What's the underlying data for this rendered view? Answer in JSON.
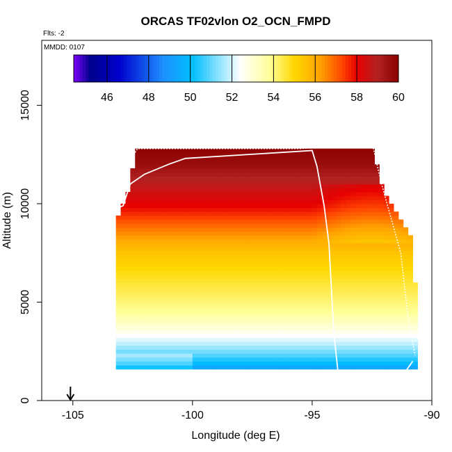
{
  "chart_data": {
    "type": "heatmap",
    "title": "ORCAS TF02vlon O2_OCN_FMPD",
    "subtitle_flights": "Flts: -2",
    "subtitle_date": "MMDD: 0107",
    "xlabel": "Longitude (deg E)",
    "ylabel": "Altitude (m)",
    "xlim": [
      -106.3,
      -90
    ],
    "ylim": [
      0,
      18300
    ],
    "x_ticks": [
      "-105",
      "-100",
      "-95",
      "-90"
    ],
    "x_tick_values": [
      -105,
      -100,
      -95,
      -90
    ],
    "y_ticks": [
      "0",
      "5000",
      "10000",
      "15000"
    ],
    "y_tick_values": [
      0,
      5000,
      10000,
      15000
    ],
    "colorbar": {
      "min": 44.4,
      "max": 60,
      "tick_labels": [
        "46",
        "48",
        "50",
        "52",
        "54",
        "56",
        "58",
        "60"
      ],
      "tick_values": [
        46,
        48,
        50,
        52,
        54,
        56,
        58,
        60
      ],
      "colors": [
        "#7f00ff",
        "#00008b",
        "#0000cd",
        "#1e90ff",
        "#00bfff",
        "#ffffff",
        "#ffff99",
        "#ffd700",
        "#ffa500",
        "#ff4500",
        "#e60000",
        "#b22222",
        "#8b0000"
      ],
      "color_stops": [
        44.4,
        45.2,
        46.6,
        48.7,
        50.1,
        52.4,
        53.8,
        55.0,
        56.2,
        57.3,
        58.0,
        59.0,
        60.0
      ]
    },
    "profile_levels": [
      {
        "alt": 0,
        "value": 45.8
      },
      {
        "alt": 800,
        "value": 46.5
      },
      {
        "alt": 1300,
        "value": 48.0
      },
      {
        "alt": 1800,
        "value": 49.8
      },
      {
        "alt": 2400,
        "value": 51.0
      },
      {
        "alt": 3000,
        "value": 52.0
      },
      {
        "alt": 3600,
        "value": 52.8
      },
      {
        "alt": 4500,
        "value": 53.8
      },
      {
        "alt": 6000,
        "value": 54.6
      },
      {
        "alt": 7500,
        "value": 55.4
      },
      {
        "alt": 8800,
        "value": 56.8
      },
      {
        "alt": 9800,
        "value": 57.9
      },
      {
        "alt": 11000,
        "value": 58.8
      },
      {
        "alt": 12000,
        "value": 59.6
      },
      {
        "alt": 13000,
        "value": 60.0
      }
    ],
    "data_extent": {
      "top_edge": [
        [
          -103.2,
          9000
        ],
        [
          -102.9,
          10000
        ],
        [
          -102.6,
          11000
        ],
        [
          -102.4,
          12700
        ],
        [
          -99.0,
          12900
        ],
        [
          -94.6,
          12900
        ],
        [
          -94.5,
          13100
        ],
        [
          -92.5,
          13100
        ],
        [
          -92.0,
          10500
        ],
        [
          -90.9,
          8500
        ],
        [
          -90.7,
          6000
        ],
        [
          -90.5,
          3400
        ]
      ],
      "bottom_edge": [
        [
          -105.3,
          1600
        ],
        [
          -103.5,
          1300
        ],
        [
          -101.3,
          900
        ],
        [
          -99.3,
          700
        ],
        [
          -93.5,
          400
        ],
        [
          -93.3,
          0
        ],
        [
          -91.6,
          0
        ],
        [
          -91.4,
          300
        ],
        [
          -90.8,
          600
        ],
        [
          -90.5,
          1500
        ]
      ],
      "left_edge": [
        [
          -105.3,
          1600
        ],
        [
          -105.3,
          3200
        ],
        [
          -104.7,
          4500
        ],
        [
          -104.5,
          6000
        ],
        [
          -104.0,
          7500
        ],
        [
          -103.7,
          8800
        ],
        [
          -103.3,
          9500
        ],
        [
          -103.0,
          10000
        ],
        [
          -102.7,
          11000
        ],
        [
          -102.4,
          12700
        ]
      ]
    },
    "flight_track_inbound": [
      [
        -105.1,
        1500
      ],
      [
        -104.8,
        4800
      ],
      [
        -104.3,
        5200
      ],
      [
        -104.0,
        7800
      ],
      [
        -103.6,
        8100
      ],
      [
        -103.3,
        9700
      ],
      [
        -102.9,
        9900
      ],
      [
        -102.6,
        11000
      ],
      [
        -102.0,
        11500
      ],
      [
        -101.0,
        12000
      ],
      [
        -100.3,
        12300
      ],
      [
        -95.0,
        12700
      ],
      [
        -94.8,
        11900
      ],
      [
        -94.5,
        9900
      ],
      [
        -94.3,
        8000
      ],
      [
        -94.2,
        5800
      ],
      [
        -94.1,
        3500
      ],
      [
        -93.9,
        1200
      ],
      [
        -93.7,
        300
      ],
      [
        -93.5,
        1300
      ],
      [
        -93.1,
        1300
      ],
      [
        -92.9,
        300
      ],
      [
        -92.5,
        300
      ],
      [
        -92.3,
        1300
      ],
      [
        -91.9,
        1300
      ],
      [
        -91.7,
        300
      ],
      [
        -91.4,
        300
      ],
      [
        -91.2,
        1300
      ],
      [
        -90.8,
        2000
      ]
    ],
    "flight_track_outbound": [
      [
        -105.2,
        2800
      ],
      [
        -104.4,
        7700
      ],
      [
        -103.7,
        9400
      ],
      [
        -103.1,
        10000
      ],
      [
        -102.7,
        12000
      ],
      [
        -102.3,
        12800
      ],
      [
        -95.5,
        12800
      ],
      [
        -92.5,
        13100
      ],
      [
        -92.1,
        11000
      ],
      [
        -91.3,
        7500
      ],
      [
        -91.0,
        4300
      ],
      [
        -90.7,
        2300
      ]
    ],
    "marker": {
      "lon": -105.1,
      "alt": 0,
      "label": "arrow"
    }
  }
}
